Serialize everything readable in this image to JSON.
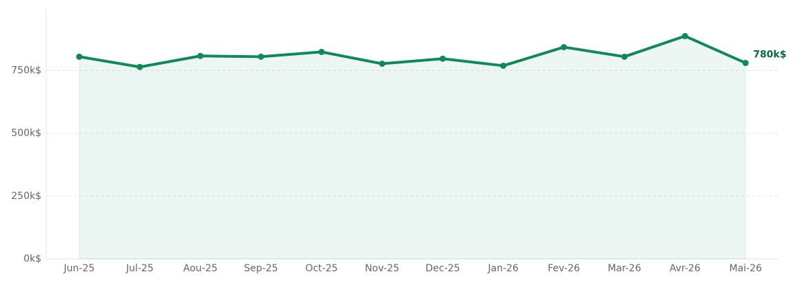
{
  "chart_data": {
    "type": "line",
    "categories": [
      "Jun-25",
      "Jul-25",
      "Aou-25",
      "Sep-25",
      "Oct-25",
      "Nov-25",
      "Dec-25",
      "Jan-26",
      "Fev-26",
      "Mar-26",
      "Avr-26",
      "Mai-26"
    ],
    "series": [
      {
        "color": "#0f8a57",
        "values": [
          805,
          764,
          808,
          805,
          824,
          777,
          797,
          769,
          843,
          805,
          887,
          780
        ],
        "value_labels": [
          null,
          null,
          null,
          null,
          null,
          null,
          null,
          null,
          null,
          null,
          null,
          "780k$"
        ]
      }
    ],
    "ylim": [
      0,
      995
    ],
    "yticks": [
      {
        "value": 0,
        "label": "0k$"
      },
      {
        "value": 250,
        "label": "250k$"
      },
      {
        "value": 500,
        "label": "500k$"
      },
      {
        "value": 750,
        "label": "750k$"
      }
    ],
    "grid": true
  }
}
